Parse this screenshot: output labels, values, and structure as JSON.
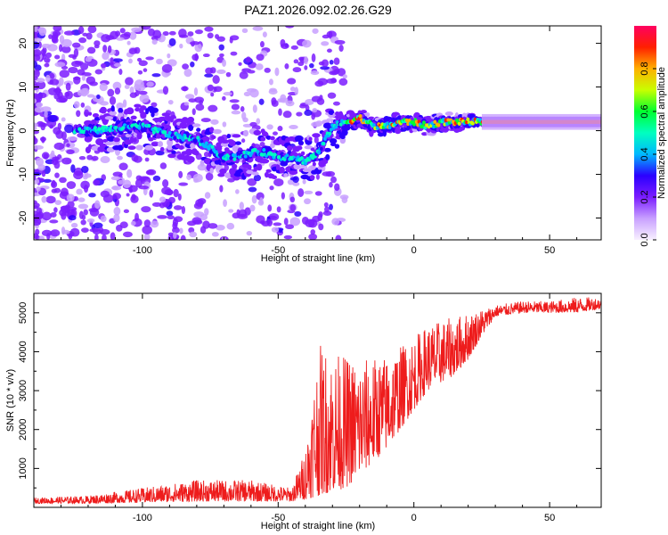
{
  "title": "PAZ1.2026.092.02.26.G29",
  "chart_data": [
    {
      "type": "heatmap",
      "name": "spectrogram",
      "xlabel": "Height of straight line (km)",
      "ylabel": "Frequency (Hz)",
      "xlim": [
        -140,
        69
      ],
      "ylim": [
        -25,
        24
      ],
      "xticks": [
        -100,
        -50,
        0,
        50
      ],
      "yticks": [
        -20,
        -10,
        0,
        10,
        20
      ],
      "ridge": {
        "x": [
          -120,
          -110,
          -100,
          -90,
          -80,
          -75,
          -70,
          -65,
          -60,
          -55,
          -50,
          -45,
          -40,
          -35,
          -30,
          -25,
          -20,
          -15,
          -10,
          -5,
          0,
          5,
          10,
          15,
          20,
          25,
          30,
          40,
          50,
          60,
          69
        ],
        "freq": [
          0,
          0.5,
          1,
          -1,
          -2,
          -4,
          -6,
          -6,
          -5,
          -5,
          -6,
          -6,
          -7,
          -5,
          1,
          2,
          3,
          1,
          1,
          2,
          2,
          1,
          2,
          2,
          2,
          2,
          2,
          2,
          2,
          2,
          2
        ]
      },
      "colorbar": {
        "label": "Normalized spectral amplitude",
        "range": [
          0,
          1
        ],
        "ticks": [
          "0.0",
          "0.2",
          "0.4",
          "0.6",
          "0.8"
        ],
        "colors": [
          "#f8f0ff",
          "#c8a0ff",
          "#7b1cff",
          "#2b00ff",
          "#00b8ff",
          "#00ffc0",
          "#00ff30",
          "#c8ff00",
          "#ffb000",
          "#ff2000",
          "#ff0060"
        ]
      }
    },
    {
      "type": "line",
      "name": "snr",
      "xlabel": "Height of straight line (km)",
      "ylabel": "SNR (10 * v/v)",
      "xlim": [
        -140,
        69
      ],
      "ylim": [
        0,
        5500
      ],
      "xticks": [
        -100,
        -50,
        0,
        50
      ],
      "yticks": [
        1000,
        2000,
        3000,
        4000,
        5000
      ],
      "color": "#ee1c1c",
      "envelope": {
        "x": [
          -140,
          -120,
          -100,
          -80,
          -60,
          -45,
          -40,
          -35,
          -30,
          -25,
          -20,
          -10,
          0,
          5,
          10,
          15,
          20,
          25,
          30,
          40,
          50,
          60,
          69
        ],
        "low": [
          100,
          100,
          120,
          150,
          150,
          150,
          200,
          300,
          400,
          500,
          800,
          1500,
          2500,
          3000,
          3200,
          3400,
          3800,
          4400,
          4900,
          5000,
          5000,
          5000,
          5100
        ],
        "high": [
          250,
          300,
          500,
          700,
          700,
          500,
          1500,
          4200,
          4000,
          3900,
          3800,
          3900,
          4400,
          4700,
          4800,
          4900,
          5000,
          5100,
          5200,
          5300,
          5300,
          5400,
          5400
        ]
      }
    }
  ]
}
